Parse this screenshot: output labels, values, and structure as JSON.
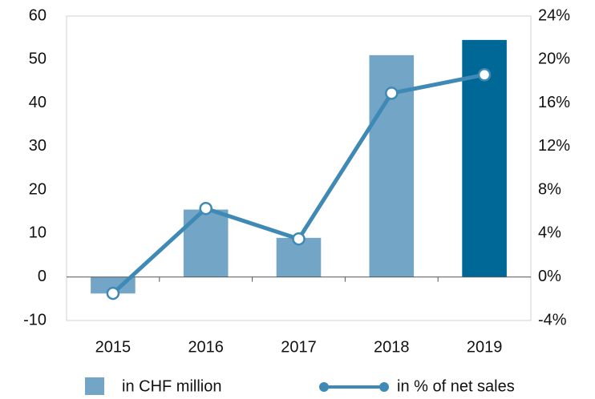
{
  "chart_data": {
    "type": "bar",
    "categories": [
      "2015",
      "2016",
      "2017",
      "2018",
      "2019"
    ],
    "series": [
      {
        "name": "in CHF million",
        "type": "bar",
        "color": "#73a5c6",
        "colors": [
          "#73a5c6",
          "#73a5c6",
          "#73a5c6",
          "#73a5c6",
          "#006897"
        ],
        "values": [
          -3.8,
          15.5,
          9,
          51,
          54.5
        ]
      },
      {
        "name": "in % of net sales",
        "type": "line",
        "axis": "y2",
        "color": "#3e89b5",
        "values": [
          -1.5,
          6.3,
          3.5,
          16.9,
          18.6
        ]
      }
    ],
    "ylim": [
      -10,
      60
    ],
    "yticks": [
      -10,
      0,
      10,
      20,
      30,
      40,
      50,
      60
    ],
    "y2lim": [
      -4,
      24
    ],
    "y2ticks": [
      {
        "value": -4,
        "label": "-4%"
      },
      {
        "value": 0,
        "label": "0%"
      },
      {
        "value": 4,
        "label": "4%"
      },
      {
        "value": 8,
        "label": "8%"
      },
      {
        "value": 12,
        "label": "12%"
      },
      {
        "value": 16,
        "label": "16%"
      },
      {
        "value": 20,
        "label": "20%"
      },
      {
        "value": 24,
        "label": "24%"
      }
    ],
    "legend": "bottom"
  }
}
